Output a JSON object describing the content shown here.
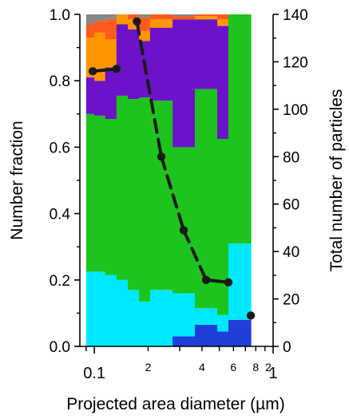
{
  "chart_data": {
    "type": "stacked-bar-with-line",
    "title": "",
    "xlabel": "Projected area diameter (µm)",
    "ylabel": "Number fraction",
    "y2label": "Total number of particles",
    "xscale": "log",
    "xlim": [
      0.083,
      1.0
    ],
    "ylim": [
      0,
      1.0
    ],
    "y2lim": [
      0,
      140
    ],
    "x_major_ticks": [
      {
        "value": 0.1,
        "label": "0.1"
      },
      {
        "value": 1,
        "label": "1"
      }
    ],
    "x_minor_labeled_ticks": [
      {
        "value": 0.2,
        "label": "2"
      },
      {
        "value": 0.4,
        "label": "4"
      },
      {
        "value": 0.6,
        "label": "6"
      },
      {
        "value": 0.8,
        "label": "8"
      },
      {
        "value": 2,
        "label": "2"
      }
    ],
    "y_ticks": [
      "0.0",
      "0.2",
      "0.4",
      "0.6",
      "0.8",
      "1.0"
    ],
    "y2_ticks": [
      "0",
      "20",
      "40",
      "60",
      "80",
      "100",
      "120",
      "140"
    ],
    "bin_edges": [
      0.09,
      0.1,
      0.115,
      0.133,
      0.154,
      0.178,
      0.205,
      0.237,
      0.274,
      0.316,
      0.365,
      0.422,
      0.487,
      0.562,
      0.649,
      0.75,
      0.866
    ],
    "class_colors": [
      "#1f3fd8",
      "#00e8ff",
      "#1dc41d",
      "#6c12c8",
      "#ff9600",
      "#ff5a1e",
      "#888888"
    ],
    "fractions": [
      [
        0.0,
        0.225,
        0.7,
        0.81,
        0.93,
        0.97,
        1.0
      ],
      [
        0.0,
        0.225,
        0.695,
        0.8,
        0.945,
        0.98,
        1.0
      ],
      [
        0.0,
        0.215,
        0.685,
        0.84,
        0.925,
        0.985,
        1.0
      ],
      [
        0.0,
        0.2,
        0.755,
        0.97,
        1.0,
        1.0,
        1.0
      ],
      [
        0.0,
        0.17,
        0.745,
        0.955,
        0.985,
        1.0,
        1.0
      ],
      [
        0.0,
        0.135,
        0.75,
        0.92,
        0.95,
        0.99,
        1.0
      ],
      [
        0.0,
        0.17,
        0.74,
        0.96,
        0.985,
        1.0,
        1.0
      ],
      [
        0.03,
        0.16,
        0.6,
        0.985,
        0.985,
        0.995,
        1.0
      ],
      [
        0.065,
        0.115,
        0.775,
        0.985,
        0.995,
        1.0,
        1.0
      ],
      [
        0.045,
        0.095,
        0.625,
        0.965,
        0.985,
        1.0,
        1.0
      ],
      [
        0.08,
        0.31,
        1.0,
        1.0,
        1.0,
        1.0,
        1.0
      ]
    ],
    "bin_index_ranges": [
      [
        0,
        1
      ],
      [
        1,
        2
      ],
      [
        2,
        3
      ],
      [
        3,
        4
      ],
      [
        4,
        5
      ],
      [
        5,
        6
      ],
      [
        6,
        8
      ],
      [
        8,
        10
      ],
      [
        10,
        12
      ],
      [
        12,
        13
      ],
      [
        13,
        15
      ]
    ],
    "total_particles": {
      "x": [
        0.098,
        0.133,
        0.173,
        0.237,
        0.316,
        0.422,
        0.562,
        0.75
      ],
      "y": [
        116,
        117,
        137,
        80,
        49,
        28,
        27,
        13
      ]
    },
    "colors": {
      "line": "#1a1a1a"
    }
  }
}
